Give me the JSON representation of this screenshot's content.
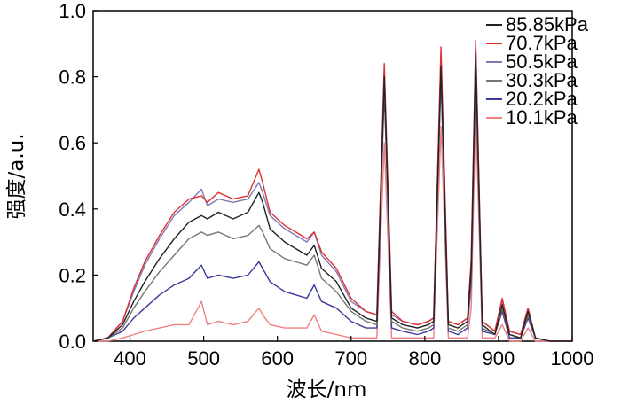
{
  "chart_data": {
    "type": "line",
    "title": "",
    "xlabel": "波长/nm",
    "ylabel": "强度/a.u.",
    "xlim": [
      350,
      1000
    ],
    "ylim": [
      0.0,
      1.0
    ],
    "x_ticks": [
      "400",
      "500",
      "600",
      "700",
      "800",
      "900",
      "1000"
    ],
    "y_ticks": [
      "0.0",
      "0.2",
      "0.4",
      "0.6",
      "0.8",
      "1.0"
    ],
    "grid": false,
    "legend_position": "top-right",
    "x": [
      350,
      370,
      390,
      405,
      420,
      440,
      460,
      480,
      497,
      505,
      520,
      540,
      560,
      575,
      580,
      590,
      610,
      625,
      640,
      650,
      660,
      680,
      700,
      720,
      735,
      745,
      755,
      770,
      790,
      805,
      812,
      822,
      832,
      845,
      858,
      863,
      869,
      878,
      895,
      905,
      915,
      930,
      940,
      950,
      970,
      1000
    ],
    "series": [
      {
        "name": "85.85kPa",
        "color": "#222222",
        "values": [
          0.0,
          0.01,
          0.05,
          0.12,
          0.18,
          0.25,
          0.31,
          0.36,
          0.38,
          0.37,
          0.39,
          0.37,
          0.39,
          0.45,
          0.42,
          0.34,
          0.3,
          0.28,
          0.26,
          0.29,
          0.22,
          0.18,
          0.1,
          0.07,
          0.06,
          0.8,
          0.07,
          0.05,
          0.04,
          0.05,
          0.06,
          0.83,
          0.05,
          0.04,
          0.06,
          0.22,
          0.87,
          0.05,
          0.02,
          0.11,
          0.02,
          0.01,
          0.09,
          0.01,
          0.0,
          0.0
        ]
      },
      {
        "name": "70.7kPa",
        "color": "#e03030",
        "values": [
          0.0,
          0.01,
          0.06,
          0.16,
          0.24,
          0.32,
          0.39,
          0.43,
          0.44,
          0.42,
          0.45,
          0.43,
          0.44,
          0.52,
          0.48,
          0.39,
          0.35,
          0.33,
          0.31,
          0.33,
          0.27,
          0.22,
          0.13,
          0.09,
          0.08,
          0.84,
          0.09,
          0.06,
          0.05,
          0.06,
          0.07,
          0.89,
          0.06,
          0.05,
          0.07,
          0.25,
          0.91,
          0.06,
          0.03,
          0.13,
          0.03,
          0.02,
          0.1,
          0.01,
          0.0,
          0.0
        ]
      },
      {
        "name": "50.5kPa",
        "color": "#7a7ab8",
        "values": [
          0.0,
          0.01,
          0.06,
          0.15,
          0.23,
          0.31,
          0.38,
          0.42,
          0.46,
          0.41,
          0.43,
          0.42,
          0.43,
          0.48,
          0.45,
          0.38,
          0.34,
          0.32,
          0.3,
          0.33,
          0.26,
          0.21,
          0.12,
          0.09,
          0.08,
          0.82,
          0.08,
          0.06,
          0.05,
          0.06,
          0.07,
          0.87,
          0.06,
          0.05,
          0.07,
          0.24,
          0.9,
          0.06,
          0.03,
          0.12,
          0.03,
          0.02,
          0.1,
          0.01,
          0.0,
          0.0
        ]
      },
      {
        "name": "30.3kPa",
        "color": "#777777",
        "values": [
          0.0,
          0.01,
          0.04,
          0.1,
          0.15,
          0.21,
          0.26,
          0.31,
          0.33,
          0.32,
          0.33,
          0.31,
          0.32,
          0.35,
          0.33,
          0.28,
          0.25,
          0.24,
          0.23,
          0.26,
          0.19,
          0.15,
          0.09,
          0.06,
          0.05,
          0.78,
          0.06,
          0.04,
          0.03,
          0.04,
          0.05,
          0.82,
          0.04,
          0.03,
          0.05,
          0.2,
          0.86,
          0.04,
          0.02,
          0.1,
          0.02,
          0.01,
          0.08,
          0.01,
          0.0,
          0.0
        ]
      },
      {
        "name": "20.2kPa",
        "color": "#3a3a9a",
        "values": [
          0.0,
          0.01,
          0.03,
          0.07,
          0.1,
          0.14,
          0.17,
          0.19,
          0.23,
          0.19,
          0.2,
          0.19,
          0.2,
          0.24,
          0.22,
          0.18,
          0.15,
          0.14,
          0.13,
          0.17,
          0.12,
          0.1,
          0.06,
          0.04,
          0.04,
          0.76,
          0.04,
          0.03,
          0.02,
          0.03,
          0.04,
          0.8,
          0.03,
          0.02,
          0.04,
          0.18,
          0.84,
          0.03,
          0.02,
          0.09,
          0.01,
          0.01,
          0.07,
          0.01,
          0.0,
          0.0
        ]
      },
      {
        "name": "10.1kPa",
        "color": "#f08080",
        "values": [
          0.0,
          0.0,
          0.01,
          0.02,
          0.03,
          0.04,
          0.05,
          0.05,
          0.12,
          0.05,
          0.06,
          0.05,
          0.06,
          0.1,
          0.08,
          0.05,
          0.04,
          0.04,
          0.04,
          0.08,
          0.03,
          0.02,
          0.01,
          0.01,
          0.01,
          0.6,
          0.01,
          0.01,
          0.01,
          0.01,
          0.01,
          0.65,
          0.01,
          0.01,
          0.01,
          0.1,
          0.7,
          0.01,
          0.01,
          0.05,
          0.0,
          0.0,
          0.04,
          0.0,
          0.0,
          0.0
        ]
      }
    ]
  }
}
